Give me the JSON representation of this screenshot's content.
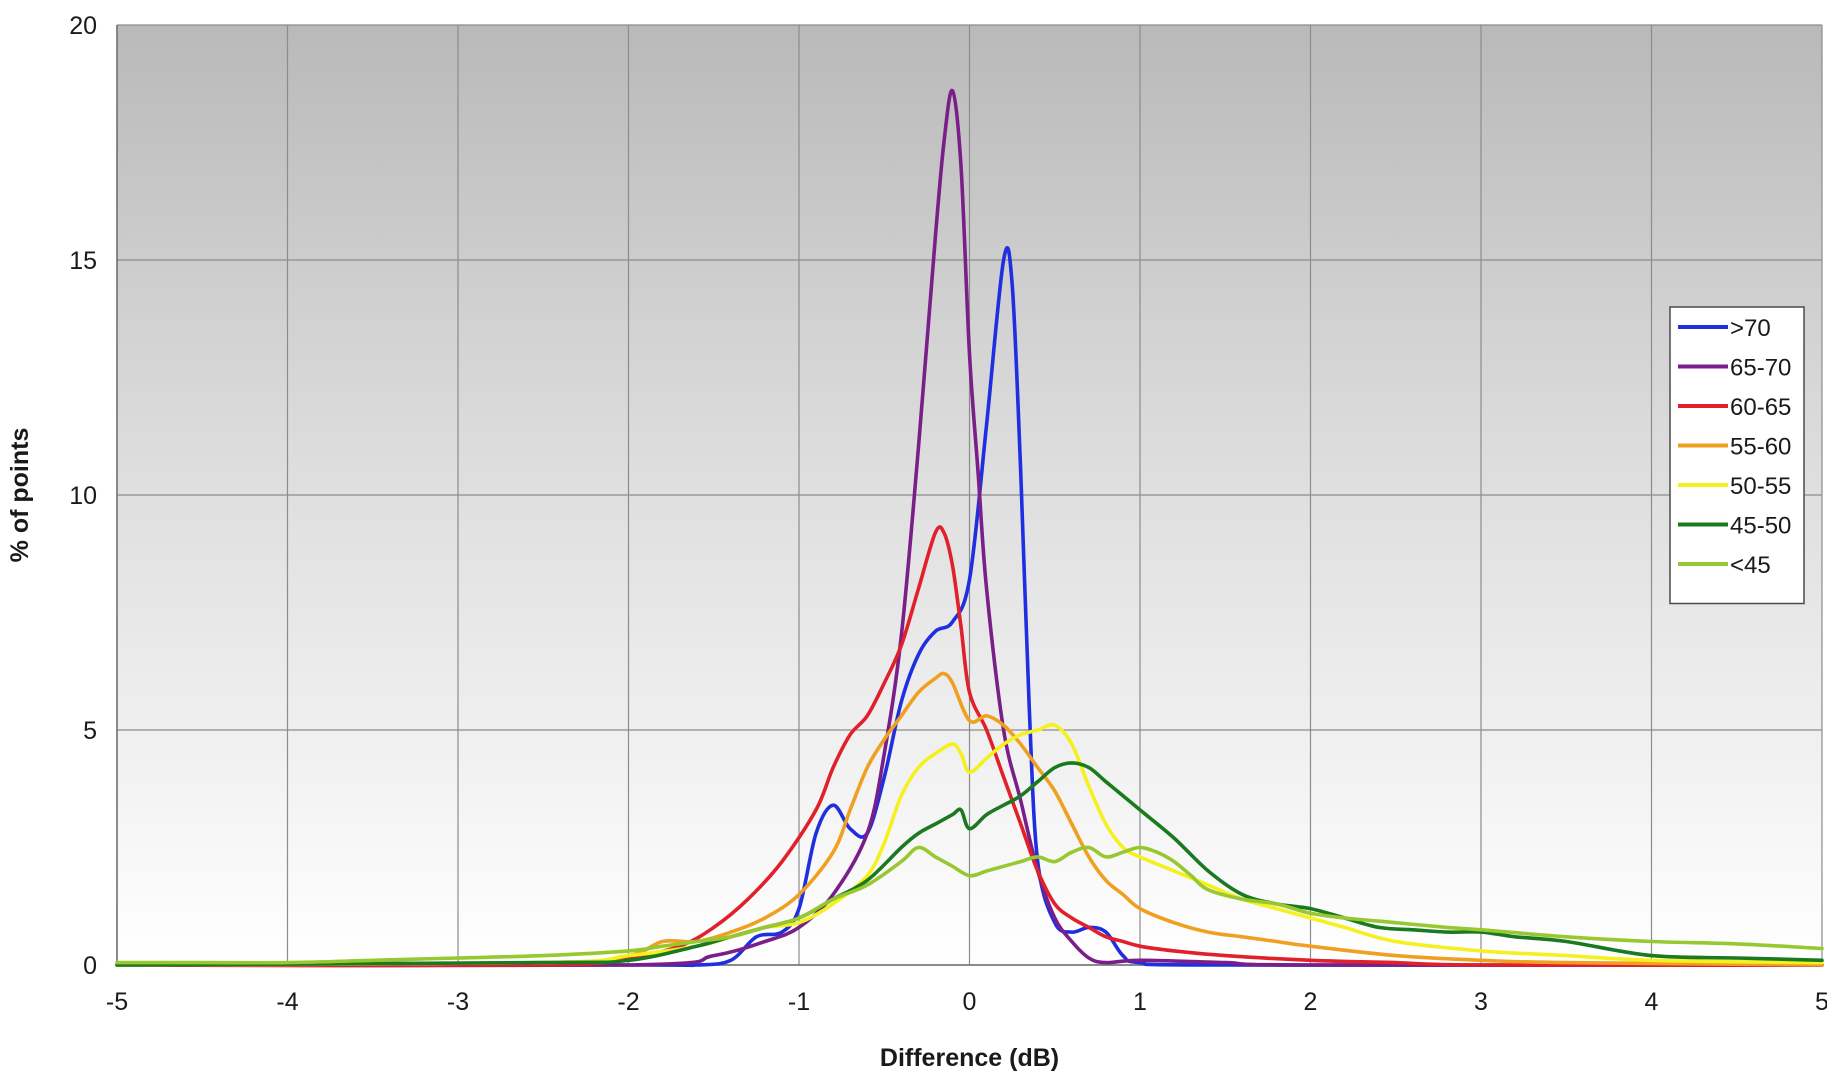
{
  "chart_data": {
    "type": "line",
    "title": "",
    "xlabel": "Difference (dB)",
    "ylabel": "% of points",
    "xlim": [
      -5,
      5
    ],
    "ylim": [
      0,
      20
    ],
    "x_ticks": [
      -5,
      -4,
      -3,
      -2,
      -1,
      0,
      1,
      2,
      3,
      4,
      5
    ],
    "y_ticks": [
      0,
      5,
      10,
      15,
      20
    ],
    "grid": true,
    "legend_position": "right",
    "series": [
      {
        "name": ">70",
        "color": "#1f2fe0",
        "points": [
          [
            -5,
            0
          ],
          [
            -2,
            0
          ],
          [
            -1.6,
            0
          ],
          [
            -1.4,
            0.1
          ],
          [
            -1.25,
            0.6
          ],
          [
            -1.1,
            0.7
          ],
          [
            -1.0,
            1.2
          ],
          [
            -0.9,
            2.8
          ],
          [
            -0.8,
            3.4
          ],
          [
            -0.7,
            2.9
          ],
          [
            -0.6,
            2.8
          ],
          [
            -0.5,
            4.0
          ],
          [
            -0.4,
            5.6
          ],
          [
            -0.3,
            6.6
          ],
          [
            -0.2,
            7.1
          ],
          [
            -0.1,
            7.3
          ],
          [
            0.0,
            8.2
          ],
          [
            0.1,
            11.5
          ],
          [
            0.2,
            15.0
          ],
          [
            0.25,
            14.5
          ],
          [
            0.3,
            10.5
          ],
          [
            0.35,
            5.5
          ],
          [
            0.4,
            2.2
          ],
          [
            0.5,
            0.9
          ],
          [
            0.6,
            0.7
          ],
          [
            0.7,
            0.8
          ],
          [
            0.8,
            0.7
          ],
          [
            0.9,
            0.2
          ],
          [
            1.0,
            0.05
          ],
          [
            1.5,
            0
          ],
          [
            5,
            0
          ]
        ]
      },
      {
        "name": "65-70",
        "color": "#7a1e8a",
        "points": [
          [
            -5,
            0
          ],
          [
            -2,
            0
          ],
          [
            -1.5,
            0.2
          ],
          [
            -1.2,
            0.5
          ],
          [
            -1.0,
            0.8
          ],
          [
            -0.8,
            1.5
          ],
          [
            -0.6,
            2.8
          ],
          [
            -0.5,
            4.5
          ],
          [
            -0.4,
            7.0
          ],
          [
            -0.3,
            11.0
          ],
          [
            -0.2,
            15.5
          ],
          [
            -0.15,
            17.5
          ],
          [
            -0.1,
            18.6
          ],
          [
            -0.05,
            17.0
          ],
          [
            0.0,
            13.0
          ],
          [
            0.05,
            10.5
          ],
          [
            0.1,
            8.0
          ],
          [
            0.2,
            5.0
          ],
          [
            0.3,
            3.5
          ],
          [
            0.4,
            2.0
          ],
          [
            0.5,
            1.0
          ],
          [
            0.6,
            0.5
          ],
          [
            0.7,
            0.15
          ],
          [
            0.8,
            0.05
          ],
          [
            1.0,
            0.1
          ],
          [
            1.5,
            0.05
          ],
          [
            2.0,
            0
          ],
          [
            5,
            0
          ]
        ]
      },
      {
        "name": "60-65",
        "color": "#e0202a",
        "points": [
          [
            -5,
            0
          ],
          [
            -2.5,
            0
          ],
          [
            -2.0,
            0.15
          ],
          [
            -1.7,
            0.4
          ],
          [
            -1.5,
            0.8
          ],
          [
            -1.3,
            1.4
          ],
          [
            -1.1,
            2.2
          ],
          [
            -0.9,
            3.3
          ],
          [
            -0.8,
            4.2
          ],
          [
            -0.7,
            4.9
          ],
          [
            -0.6,
            5.3
          ],
          [
            -0.5,
            6.0
          ],
          [
            -0.4,
            6.8
          ],
          [
            -0.3,
            8.0
          ],
          [
            -0.2,
            9.2
          ],
          [
            -0.15,
            9.2
          ],
          [
            -0.1,
            8.5
          ],
          [
            -0.05,
            7.2
          ],
          [
            0.0,
            5.8
          ],
          [
            0.1,
            5.0
          ],
          [
            0.2,
            4.0
          ],
          [
            0.3,
            3.0
          ],
          [
            0.4,
            2.0
          ],
          [
            0.5,
            1.3
          ],
          [
            0.6,
            1.0
          ],
          [
            0.7,
            0.8
          ],
          [
            0.8,
            0.6
          ],
          [
            0.9,
            0.5
          ],
          [
            1.0,
            0.4
          ],
          [
            1.2,
            0.3
          ],
          [
            1.5,
            0.2
          ],
          [
            2.0,
            0.1
          ],
          [
            2.5,
            0.05
          ],
          [
            3.0,
            0
          ],
          [
            5,
            0
          ]
        ]
      },
      {
        "name": "55-60",
        "color": "#f0a020",
        "points": [
          [
            -5,
            0
          ],
          [
            -2.5,
            0.05
          ],
          [
            -2.0,
            0.2
          ],
          [
            -1.8,
            0.5
          ],
          [
            -1.6,
            0.5
          ],
          [
            -1.4,
            0.7
          ],
          [
            -1.2,
            1.0
          ],
          [
            -1.0,
            1.5
          ],
          [
            -0.8,
            2.4
          ],
          [
            -0.7,
            3.3
          ],
          [
            -0.6,
            4.2
          ],
          [
            -0.5,
            4.8
          ],
          [
            -0.4,
            5.3
          ],
          [
            -0.3,
            5.8
          ],
          [
            -0.2,
            6.1
          ],
          [
            -0.15,
            6.2
          ],
          [
            -0.1,
            6.0
          ],
          [
            0.0,
            5.2
          ],
          [
            0.1,
            5.3
          ],
          [
            0.2,
            5.1
          ],
          [
            0.3,
            4.7
          ],
          [
            0.4,
            4.2
          ],
          [
            0.5,
            3.7
          ],
          [
            0.6,
            3.0
          ],
          [
            0.7,
            2.3
          ],
          [
            0.8,
            1.8
          ],
          [
            0.9,
            1.5
          ],
          [
            1.0,
            1.2
          ],
          [
            1.2,
            0.9
          ],
          [
            1.4,
            0.7
          ],
          [
            1.6,
            0.6
          ],
          [
            1.8,
            0.5
          ],
          [
            2.0,
            0.4
          ],
          [
            2.5,
            0.2
          ],
          [
            3.0,
            0.1
          ],
          [
            3.5,
            0.05
          ],
          [
            5,
            0
          ]
        ]
      },
      {
        "name": "50-55",
        "color": "#f5f020",
        "points": [
          [
            -5,
            0
          ],
          [
            -2.5,
            0.05
          ],
          [
            -2.0,
            0.2
          ],
          [
            -1.6,
            0.4
          ],
          [
            -1.4,
            0.6
          ],
          [
            -1.2,
            0.8
          ],
          [
            -1.0,
            0.9
          ],
          [
            -0.8,
            1.3
          ],
          [
            -0.6,
            1.9
          ],
          [
            -0.5,
            2.6
          ],
          [
            -0.4,
            3.6
          ],
          [
            -0.3,
            4.2
          ],
          [
            -0.2,
            4.5
          ],
          [
            -0.1,
            4.7
          ],
          [
            -0.05,
            4.5
          ],
          [
            0.0,
            4.1
          ],
          [
            0.1,
            4.4
          ],
          [
            0.2,
            4.7
          ],
          [
            0.3,
            4.9
          ],
          [
            0.4,
            5.0
          ],
          [
            0.5,
            5.1
          ],
          [
            0.6,
            4.7
          ],
          [
            0.7,
            3.8
          ],
          [
            0.8,
            3.0
          ],
          [
            0.9,
            2.5
          ],
          [
            1.0,
            2.3
          ],
          [
            1.2,
            2.0
          ],
          [
            1.4,
            1.7
          ],
          [
            1.6,
            1.4
          ],
          [
            1.8,
            1.2
          ],
          [
            2.0,
            1.0
          ],
          [
            2.2,
            0.8
          ],
          [
            2.5,
            0.5
          ],
          [
            3.0,
            0.3
          ],
          [
            3.5,
            0.2
          ],
          [
            4.0,
            0.1
          ],
          [
            5,
            0.05
          ]
        ]
      },
      {
        "name": "45-50",
        "color": "#1a7a20",
        "points": [
          [
            -5,
            0
          ],
          [
            -2.5,
            0.05
          ],
          [
            -2.0,
            0.1
          ],
          [
            -1.6,
            0.4
          ],
          [
            -1.4,
            0.6
          ],
          [
            -1.2,
            0.8
          ],
          [
            -1.0,
            1.0
          ],
          [
            -0.8,
            1.4
          ],
          [
            -0.6,
            1.8
          ],
          [
            -0.4,
            2.5
          ],
          [
            -0.3,
            2.8
          ],
          [
            -0.2,
            3.0
          ],
          [
            -0.1,
            3.2
          ],
          [
            -0.05,
            3.3
          ],
          [
            0.0,
            2.9
          ],
          [
            0.1,
            3.2
          ],
          [
            0.2,
            3.4
          ],
          [
            0.3,
            3.6
          ],
          [
            0.4,
            3.9
          ],
          [
            0.5,
            4.2
          ],
          [
            0.6,
            4.3
          ],
          [
            0.7,
            4.2
          ],
          [
            0.8,
            3.9
          ],
          [
            0.9,
            3.6
          ],
          [
            1.0,
            3.3
          ],
          [
            1.2,
            2.7
          ],
          [
            1.4,
            2.0
          ],
          [
            1.6,
            1.5
          ],
          [
            1.8,
            1.3
          ],
          [
            2.0,
            1.2
          ],
          [
            2.2,
            1.0
          ],
          [
            2.4,
            0.8
          ],
          [
            2.6,
            0.75
          ],
          [
            2.8,
            0.7
          ],
          [
            3.0,
            0.7
          ],
          [
            3.2,
            0.6
          ],
          [
            3.5,
            0.5
          ],
          [
            4.0,
            0.2
          ],
          [
            4.5,
            0.15
          ],
          [
            5,
            0.1
          ]
        ]
      },
      {
        "name": "<45",
        "color": "#98c830",
        "points": [
          [
            -5,
            0.05
          ],
          [
            -4.5,
            0.05
          ],
          [
            -4.0,
            0.05
          ],
          [
            -3.5,
            0.1
          ],
          [
            -3.0,
            0.15
          ],
          [
            -2.5,
            0.2
          ],
          [
            -2.0,
            0.3
          ],
          [
            -1.8,
            0.4
          ],
          [
            -1.6,
            0.5
          ],
          [
            -1.4,
            0.6
          ],
          [
            -1.2,
            0.8
          ],
          [
            -1.0,
            1.0
          ],
          [
            -0.8,
            1.4
          ],
          [
            -0.6,
            1.7
          ],
          [
            -0.4,
            2.2
          ],
          [
            -0.3,
            2.5
          ],
          [
            -0.2,
            2.3
          ],
          [
            -0.1,
            2.1
          ],
          [
            0.0,
            1.9
          ],
          [
            0.1,
            2.0
          ],
          [
            0.2,
            2.1
          ],
          [
            0.3,
            2.2
          ],
          [
            0.4,
            2.3
          ],
          [
            0.5,
            2.2
          ],
          [
            0.6,
            2.4
          ],
          [
            0.7,
            2.5
          ],
          [
            0.8,
            2.3
          ],
          [
            0.9,
            2.4
          ],
          [
            1.0,
            2.5
          ],
          [
            1.1,
            2.4
          ],
          [
            1.2,
            2.2
          ],
          [
            1.3,
            1.9
          ],
          [
            1.4,
            1.6
          ],
          [
            1.6,
            1.4
          ],
          [
            1.8,
            1.3
          ],
          [
            2.0,
            1.1
          ],
          [
            2.2,
            1.0
          ],
          [
            2.5,
            0.9
          ],
          [
            2.8,
            0.8
          ],
          [
            3.0,
            0.75
          ],
          [
            3.5,
            0.6
          ],
          [
            4.0,
            0.5
          ],
          [
            4.5,
            0.45
          ],
          [
            5,
            0.35
          ]
        ]
      }
    ]
  }
}
